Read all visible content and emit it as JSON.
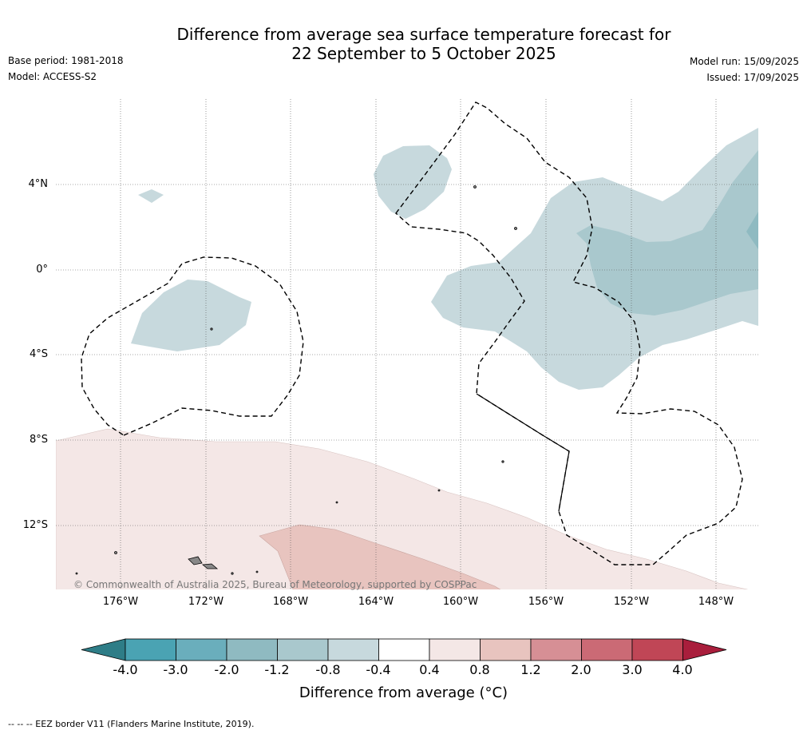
{
  "title_line1": "Difference from average sea surface temperature forecast for",
  "title_line2": "22 September to 5 October 2025",
  "base_period": "Base period: 1981-2018",
  "model": "Model: ACCESS-S2",
  "model_run": "Model run: 15/09/2025",
  "issued": "Issued: 17/09/2025",
  "lat_labels": [
    "4°N",
    "0°",
    "4°S",
    "8°S",
    "12°S"
  ],
  "lon_labels": [
    "176°W",
    "172°W",
    "168°W",
    "164°W",
    "160°W",
    "156°W",
    "152°W",
    "148°W"
  ],
  "copyright": "© Commonwealth of Australia 2025, Bureau of Meteorology, supported by COSPPac",
  "colorbar": {
    "ticks": [
      "-4.0",
      "-3.0",
      "-2.0",
      "-1.2",
      "-0.8",
      "-0.4",
      "0.4",
      "0.8",
      "1.2",
      "2.0",
      "3.0",
      "4.0"
    ],
    "colors": [
      "#2e7d87",
      "#4aa3b3",
      "#6aaebc",
      "#8fbac1",
      "#a9c8cd",
      "#c7d9dd",
      "#ffffff",
      "#f4e7e6",
      "#e8c4bf",
      "#d68f95",
      "#cb6a75",
      "#c04656",
      "#a91e3c"
    ],
    "title": "Difference from average (°C)"
  },
  "footer": "--  --  -- EEZ border V11 (Flanders Marine Institute, 2019)."
}
